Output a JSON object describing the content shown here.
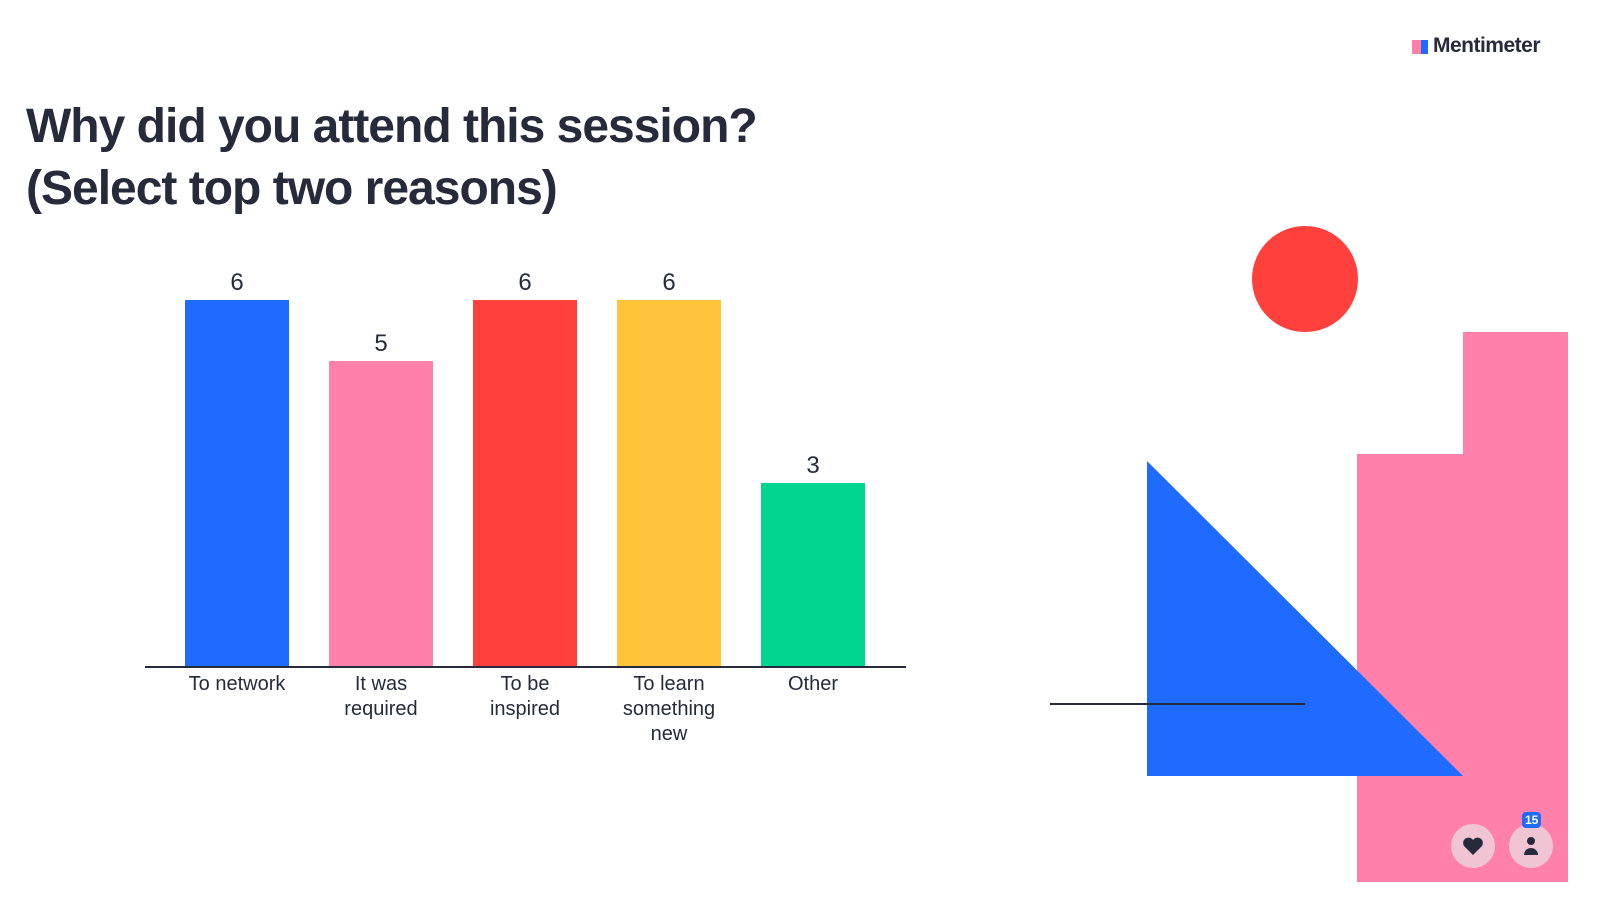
{
  "ui": {
    "brand": "Mentimeter",
    "participant_count": 15
  },
  "chart_data": {
    "type": "bar",
    "title": "Why did you attend this session? (Select top two reasons)",
    "categories": [
      "To network",
      "It was required",
      "To be inspired",
      "To learn something new",
      "Other"
    ],
    "values": [
      6,
      5,
      6,
      6,
      3
    ],
    "colors": [
      "#1f6bff",
      "#ff80ab",
      "#ff403d",
      "#ffc43a",
      "#00d68f"
    ],
    "ylim": [
      0,
      6
    ],
    "grid": false
  }
}
